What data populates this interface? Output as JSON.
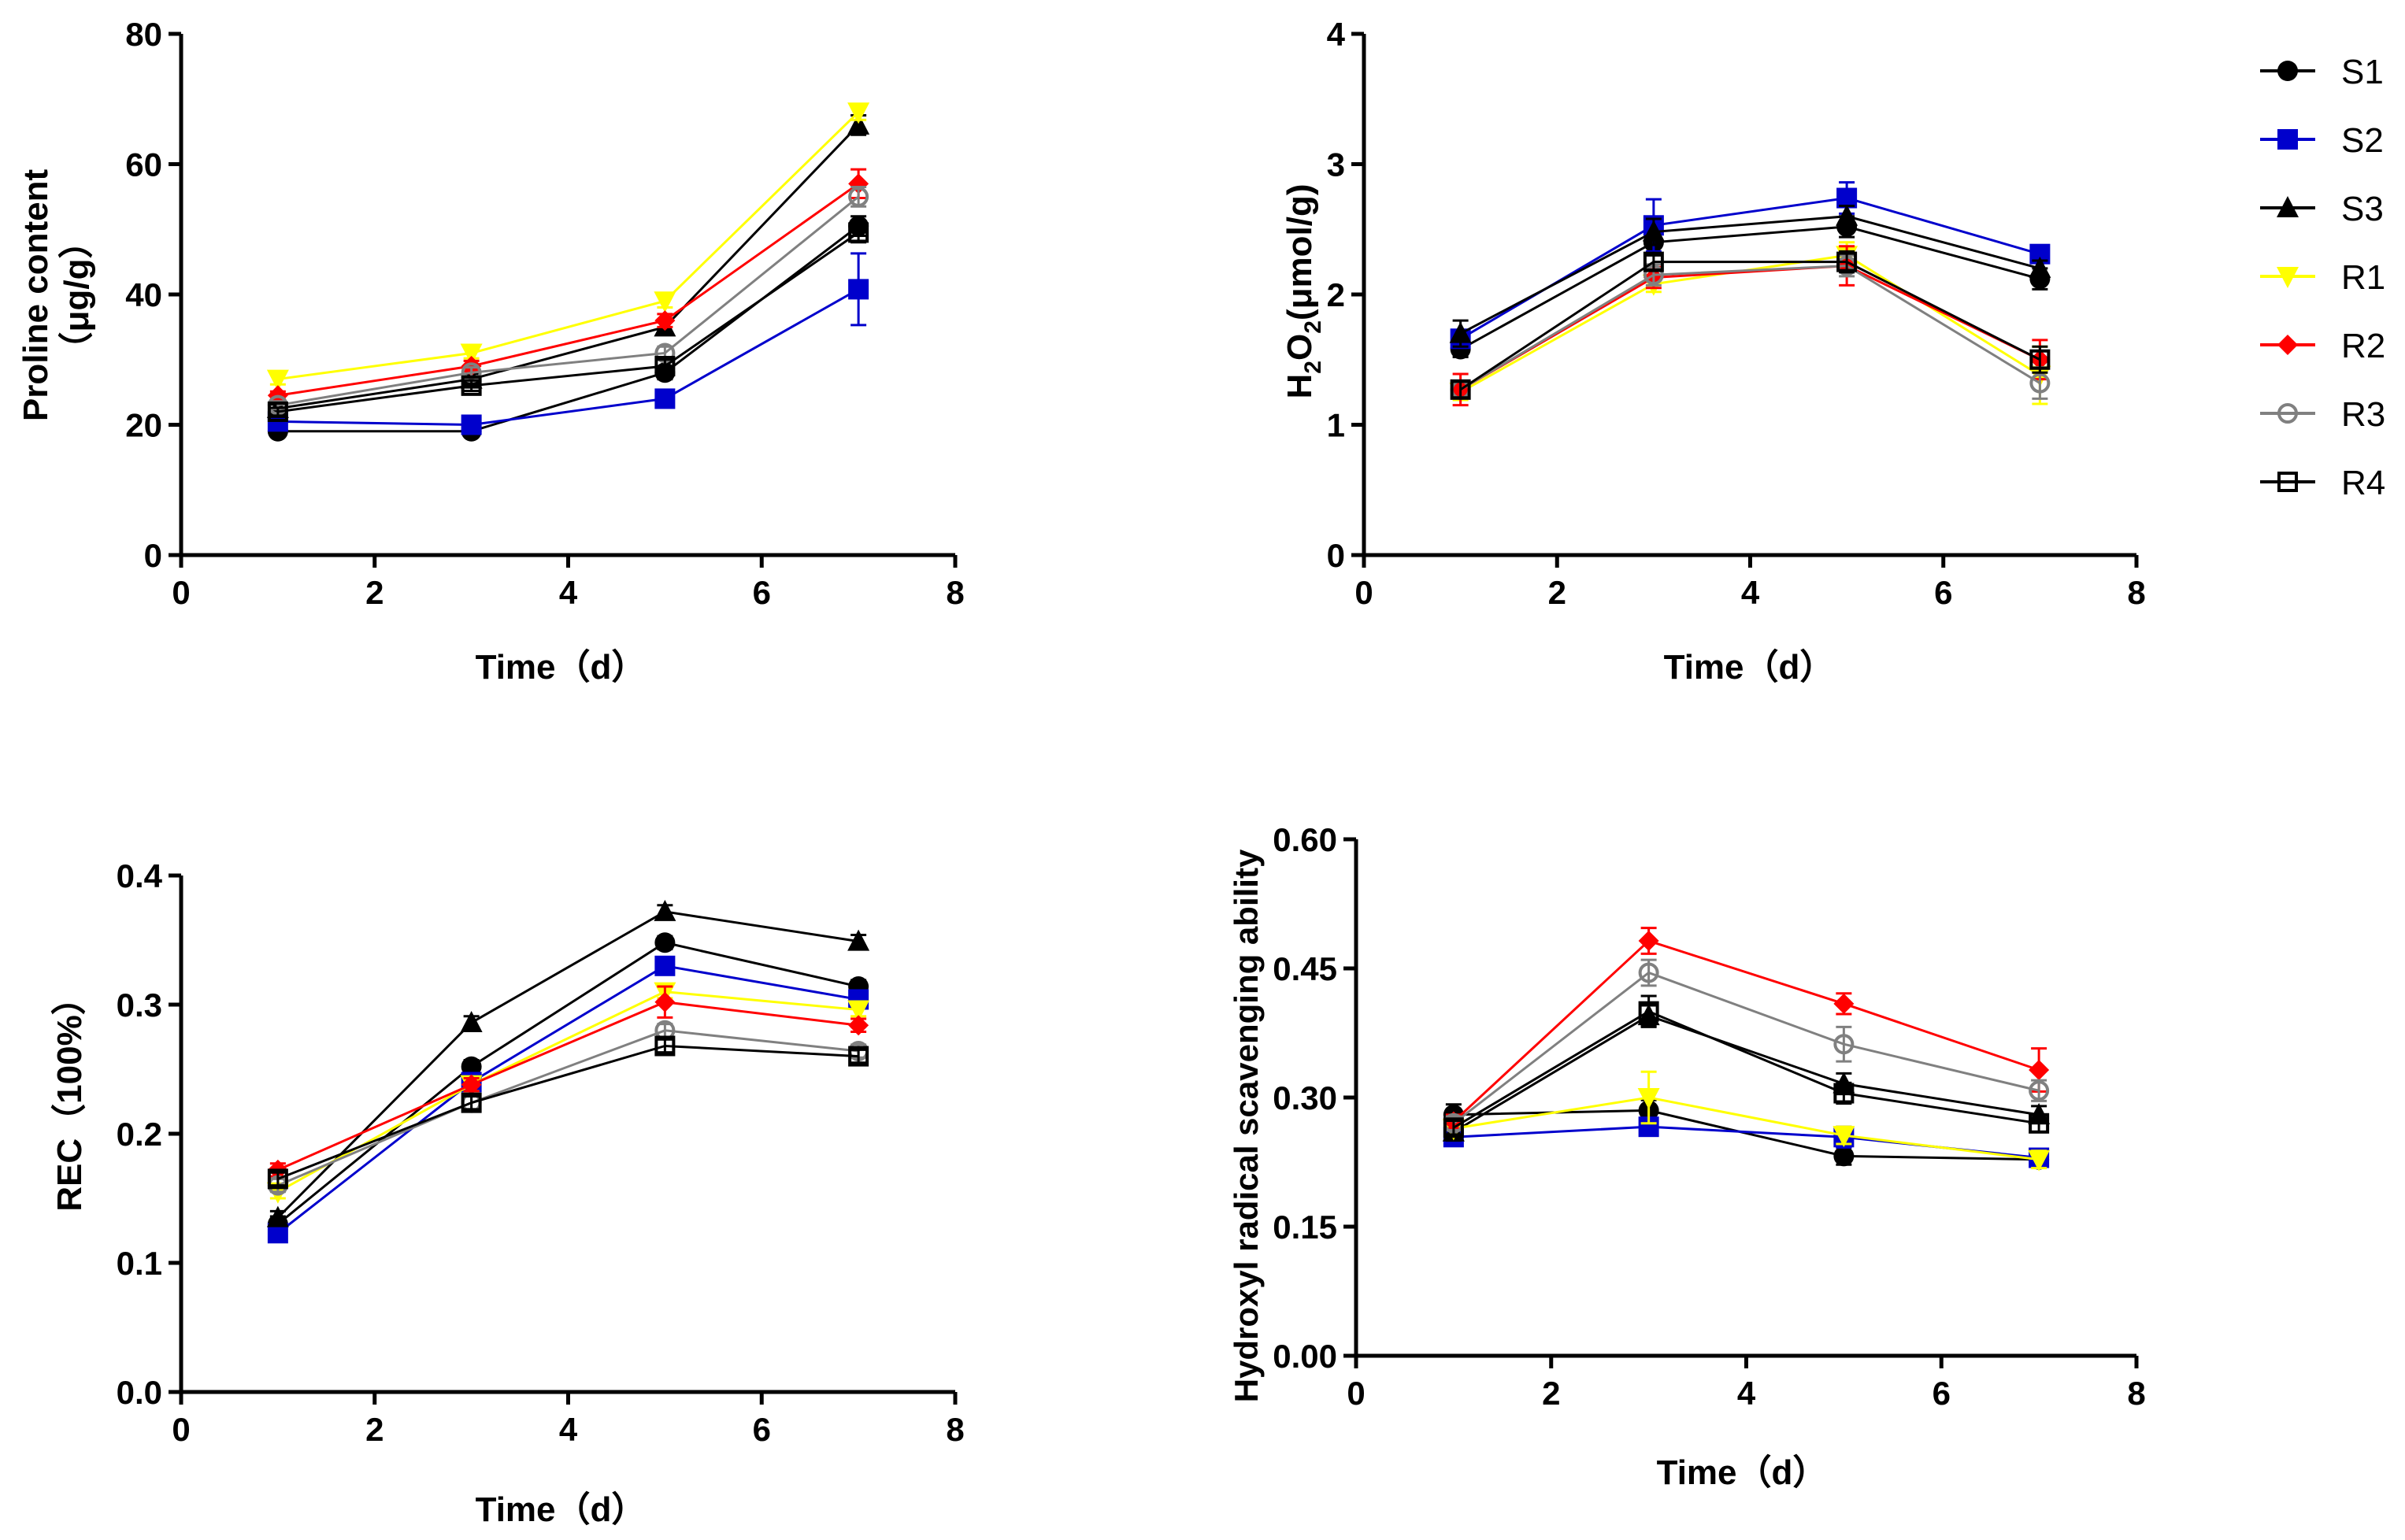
{
  "colors": {
    "S1": "#000000",
    "S2": "#0000cc",
    "S3": "#000000",
    "R1": "#ffff00",
    "R2": "#ff0000",
    "R3": "#808080",
    "R4": "#000000"
  },
  "legend": {
    "position": "top-right",
    "entries": [
      {
        "name": "S1",
        "marker": "filled-circle-icon"
      },
      {
        "name": "S2",
        "marker": "filled-square-icon"
      },
      {
        "name": "S3",
        "marker": "filled-triangle-icon"
      },
      {
        "name": "R1",
        "marker": "filled-down-triangle-icon"
      },
      {
        "name": "R2",
        "marker": "filled-diamond-icon"
      },
      {
        "name": "R3",
        "marker": "open-circle-icon"
      },
      {
        "name": "R4",
        "marker": "open-square-icon"
      }
    ]
  },
  "chart_data": [
    {
      "id": "proline",
      "type": "line",
      "title": "",
      "xlabel": "Time（d）",
      "ylabel_line1": "Proline content",
      "ylabel_line2": "（μg/g）",
      "xlim": [
        0,
        8
      ],
      "ylim": [
        0,
        80
      ],
      "xticks": [
        "0",
        "2",
        "4",
        "6",
        "8"
      ],
      "yticks": [
        "0",
        "20",
        "40",
        "60",
        "80"
      ],
      "x": [
        1,
        3,
        5,
        7
      ],
      "series": [
        {
          "name": "S1",
          "values": [
            19,
            19,
            28,
            50.5
          ],
          "errors": [
            0.6,
            0.6,
            1,
            1.5
          ]
        },
        {
          "name": "S2",
          "values": [
            20.5,
            20,
            24,
            40.8
          ],
          "errors": [
            0.6,
            0.6,
            1,
            5.5
          ]
        },
        {
          "name": "S3",
          "values": [
            22.5,
            27,
            35,
            66
          ],
          "errors": [
            0.6,
            0.8,
            1,
            1.5
          ]
        },
        {
          "name": "R1",
          "values": [
            27,
            31,
            39,
            68
          ],
          "errors": [
            0.8,
            0.8,
            1,
            1.2
          ]
        },
        {
          "name": "R2",
          "values": [
            24.5,
            29,
            36,
            57
          ],
          "errors": [
            0.6,
            0.8,
            1,
            2.2
          ]
        },
        {
          "name": "R3",
          "values": [
            23,
            28,
            31,
            55
          ],
          "errors": [
            0.6,
            0.8,
            1,
            1.5
          ]
        },
        {
          "name": "R4",
          "values": [
            22,
            26,
            29,
            49.5
          ],
          "errors": [
            0.6,
            0.8,
            1,
            1.5
          ]
        }
      ]
    },
    {
      "id": "h2o2",
      "type": "line",
      "title": "",
      "xlabel": "Time（d）",
      "ylabel": "H2O2(μmol/g)",
      "ylabel_prefix": "H",
      "ylabel_sub1": "2",
      "ylabel_mid": "O",
      "ylabel_sub2": "2",
      "ylabel_suffix": "(μmol/g)",
      "xlim": [
        0,
        8
      ],
      "ylim": [
        0,
        4
      ],
      "xticks": [
        "0",
        "2",
        "4",
        "6",
        "8"
      ],
      "yticks": [
        "0",
        "1",
        "2",
        "3",
        "4"
      ],
      "x": [
        1,
        3,
        5,
        7
      ],
      "series": [
        {
          "name": "S1",
          "values": [
            1.58,
            2.4,
            2.52,
            2.12
          ],
          "errors": [
            0.06,
            0.1,
            0.08,
            0.08
          ]
        },
        {
          "name": "S2",
          "values": [
            1.66,
            2.53,
            2.74,
            2.31
          ],
          "errors": [
            0.06,
            0.2,
            0.12,
            0.05
          ]
        },
        {
          "name": "S3",
          "values": [
            1.7,
            2.48,
            2.6,
            2.2
          ],
          "errors": [
            0.1,
            0.1,
            0.08,
            0.06
          ]
        },
        {
          "name": "R1",
          "values": [
            1.25,
            2.08,
            2.3,
            1.38
          ],
          "errors": [
            0.06,
            0.06,
            0.1,
            0.22
          ]
        },
        {
          "name": "R2",
          "values": [
            1.27,
            2.13,
            2.22,
            1.5
          ],
          "errors": [
            0.12,
            0.08,
            0.15,
            0.15
          ]
        },
        {
          "name": "R3",
          "values": [
            1.27,
            2.15,
            2.22,
            1.32
          ],
          "errors": [
            0.06,
            0.08,
            0.08,
            0.12
          ]
        },
        {
          "name": "R4",
          "values": [
            1.27,
            2.25,
            2.25,
            1.5
          ],
          "errors": [
            0.06,
            0.06,
            0.08,
            0.1
          ]
        }
      ]
    },
    {
      "id": "rec",
      "type": "line",
      "title": "",
      "xlabel": "Time（d）",
      "ylabel": "REC（100%）",
      "xlim": [
        0,
        8
      ],
      "ylim": [
        0.0,
        0.4
      ],
      "xticks": [
        "0",
        "2",
        "4",
        "6",
        "8"
      ],
      "yticks": [
        "0.0",
        "0.1",
        "0.2",
        "0.3",
        "0.4"
      ],
      "x": [
        1,
        3,
        5,
        7
      ],
      "series": [
        {
          "name": "S1",
          "values": [
            0.13,
            0.252,
            0.348,
            0.314
          ],
          "errors": [
            0.006,
            0.005,
            0.005,
            0.005
          ]
        },
        {
          "name": "S2",
          "values": [
            0.123,
            0.24,
            0.33,
            0.304
          ],
          "errors": [
            0.005,
            0.005,
            0.005,
            0.005
          ]
        },
        {
          "name": "S3",
          "values": [
            0.135,
            0.286,
            0.372,
            0.349
          ],
          "errors": [
            0.005,
            0.005,
            0.005,
            0.005
          ]
        },
        {
          "name": "R1",
          "values": [
            0.155,
            0.238,
            0.31,
            0.296
          ],
          "errors": [
            0.005,
            0.005,
            0.005,
            0.005
          ]
        },
        {
          "name": "R2",
          "values": [
            0.172,
            0.238,
            0.302,
            0.284
          ],
          "errors": [
            0.005,
            0.005,
            0.012,
            0.005
          ]
        },
        {
          "name": "R3",
          "values": [
            0.16,
            0.224,
            0.28,
            0.264
          ],
          "errors": [
            0.005,
            0.005,
            0.005,
            0.005
          ]
        },
        {
          "name": "R4",
          "values": [
            0.165,
            0.224,
            0.268,
            0.26
          ],
          "errors": [
            0.005,
            0.005,
            0.005,
            0.005
          ]
        }
      ]
    },
    {
      "id": "hydroxyl",
      "type": "line",
      "title": "",
      "xlabel": "Time（d）",
      "ylabel": "Hydroxyl radical scavenging ability",
      "xlim": [
        0,
        8
      ],
      "ylim": [
        0.0,
        0.6
      ],
      "xticks": [
        "0",
        "2",
        "4",
        "6",
        "8"
      ],
      "yticks": [
        "0.00",
        "0.15",
        "0.30",
        "0.45",
        "0.60"
      ],
      "x": [
        1,
        3,
        5,
        7
      ],
      "series": [
        {
          "name": "S1",
          "values": [
            0.28,
            0.285,
            0.232,
            0.228
          ],
          "errors": [
            0.012,
            0.012,
            0.01,
            0.008
          ]
        },
        {
          "name": "S2",
          "values": [
            0.254,
            0.266,
            0.254,
            0.23
          ],
          "errors": [
            0.008,
            0.008,
            0.012,
            0.006
          ]
        },
        {
          "name": "S3",
          "values": [
            0.26,
            0.395,
            0.316,
            0.28
          ],
          "errors": [
            0.01,
            0.012,
            0.012,
            0.01
          ]
        },
        {
          "name": "R1",
          "values": [
            0.264,
            0.3,
            0.256,
            0.228
          ],
          "errors": [
            0.008,
            0.03,
            0.01,
            0.01
          ]
        },
        {
          "name": "R2",
          "values": [
            0.272,
            0.482,
            0.409,
            0.332
          ],
          "errors": [
            0.008,
            0.015,
            0.012,
            0.025
          ]
        },
        {
          "name": "R3",
          "values": [
            0.27,
            0.445,
            0.362,
            0.308
          ],
          "errors": [
            0.008,
            0.015,
            0.02,
            0.012
          ]
        },
        {
          "name": "R4",
          "values": [
            0.265,
            0.4,
            0.305,
            0.27
          ],
          "errors": [
            0.008,
            0.018,
            0.012,
            0.01
          ]
        }
      ]
    }
  ]
}
